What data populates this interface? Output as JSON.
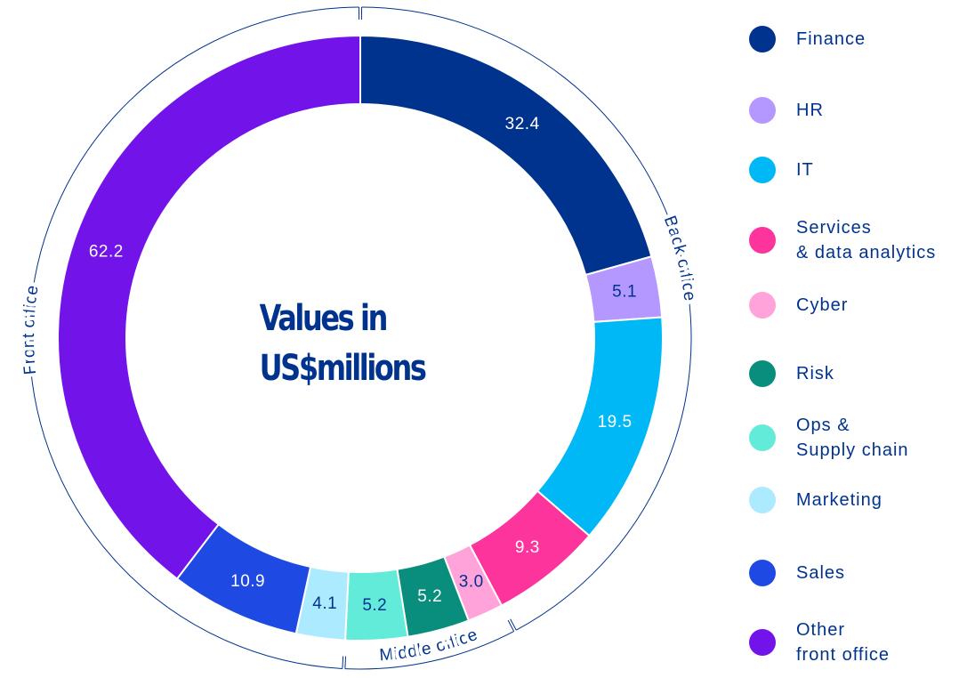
{
  "chart_data": {
    "type": "donut",
    "title": "Values in\nUS$millions",
    "categories": [
      "Finance",
      "HR",
      "IT",
      "Services\n& data analytics",
      "Cyber",
      "Risk",
      "Ops &\nSupply chain",
      "Marketing",
      "Sales",
      "Other\nfront office"
    ],
    "values": [
      32.4,
      5.1,
      19.5,
      9.3,
      3.0,
      5.2,
      5.2,
      4.1,
      10.9,
      62.2
    ],
    "value_labels": [
      "32.4",
      "5.1",
      "19.5",
      "9.3",
      "3.0",
      "5.2",
      "5.2",
      "4.1",
      "10.9",
      "62.2"
    ],
    "colors": [
      "#00338d",
      "#b497ff",
      "#00b8f5",
      "#fd349c",
      "#ffa3da",
      "#098e7e",
      "#63ebda",
      "#acEAff",
      "#1e49e2",
      "#7213ea"
    ],
    "groups": [
      {
        "name": "Back office",
        "members": [
          "Finance",
          "HR",
          "IT",
          "Services\n& data analytics"
        ]
      },
      {
        "name": "Middle office",
        "members": [
          "Cyber",
          "Risk",
          "Ops &\nSupply chain"
        ]
      },
      {
        "name": "Front office",
        "members": [
          "Marketing",
          "Sales",
          "Other\nfront office"
        ]
      }
    ],
    "legend": "right"
  }
}
